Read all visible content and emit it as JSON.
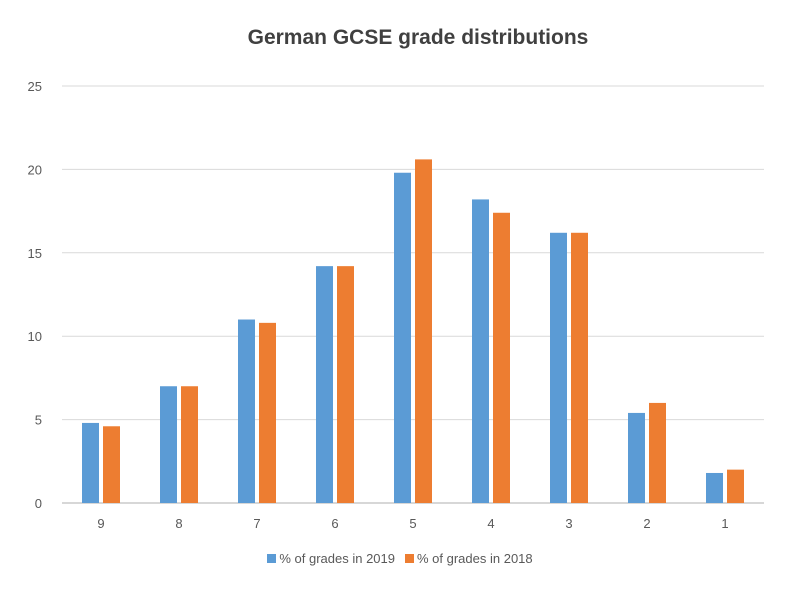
{
  "chart_data": {
    "type": "bar",
    "title": "German GCSE grade distributions",
    "xlabel": "",
    "ylabel": "",
    "categories": [
      "9",
      "8",
      "7",
      "6",
      "5",
      "4",
      "3",
      "2",
      "1"
    ],
    "series": [
      {
        "name": "% of grades in 2019",
        "color": "#5B9BD5",
        "values": [
          4.8,
          7.0,
          11.0,
          14.2,
          19.8,
          18.2,
          16.2,
          5.4,
          1.8
        ]
      },
      {
        "name": "% of grades in 2018",
        "color": "#ED7D31",
        "values": [
          4.6,
          7.0,
          10.8,
          14.2,
          20.6,
          17.4,
          16.2,
          6.0,
          2.0
        ]
      }
    ],
    "ylim": [
      0,
      25
    ],
    "yticks": [
      "0",
      "5",
      "10",
      "15",
      "20",
      "25"
    ],
    "grid": true,
    "legend": "bottom"
  }
}
